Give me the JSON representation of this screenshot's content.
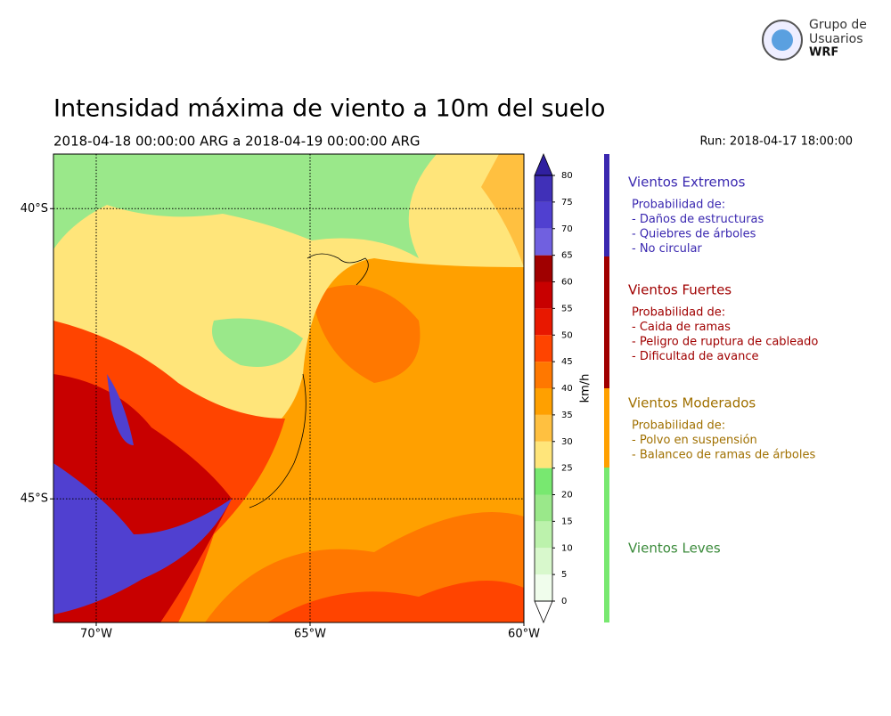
{
  "header": {
    "title": "Intensidad máxima de viento a 10m del suelo",
    "period": "2018-04-18 00:00:00 ARG  a  2018-04-19 00:00:00 ARG",
    "run": "Run: 2018-04-17 18:00:00"
  },
  "logo": {
    "lines": [
      "Grupo de",
      "Usuarios",
      "WRF"
    ]
  },
  "map": {
    "lonlim": [
      -71,
      -60
    ],
    "latlim": [
      -47.13,
      -39.06
    ],
    "lon_ticks": [
      {
        "value": -70,
        "label": "70°W"
      },
      {
        "value": -65,
        "label": "65°W"
      },
      {
        "value": -60,
        "label": "60°W"
      }
    ],
    "lat_ticks": [
      {
        "value": -40,
        "label": "40°S"
      },
      {
        "value": -45,
        "label": "45°S"
      }
    ]
  },
  "colorbar": {
    "unit": "km/h",
    "levels": [
      0,
      5,
      10,
      15,
      20,
      25,
      30,
      35,
      40,
      45,
      50,
      55,
      60,
      65,
      70,
      75,
      80
    ],
    "colors": [
      "#f0fdec",
      "#d8f8cc",
      "#bcf2ac",
      "#9ae88a",
      "#78e870",
      "#ffe57a",
      "#ffc040",
      "#ffa000",
      "#ff7800",
      "#ff4400",
      "#e81800",
      "#c80000",
      "#a00000",
      "#7060e0",
      "#5040d0",
      "#4030b8"
    ],
    "under_color": "#ffffff",
    "over_color": "#3020a0"
  },
  "legend": [
    {
      "title": "Vientos Extremos",
      "color": "#3a28b0",
      "lines": [
        "Probabilidad de:",
        "- Daños de estructuras",
        "- Quiebres de árboles",
        "- No circular"
      ]
    },
    {
      "title": "Vientos Fuertes",
      "color": "#a00000",
      "lines": [
        "Probabilidad de:",
        "- Caida de ramas",
        "- Peligro de ruptura de cableado",
        "- Dificultad de avance"
      ]
    },
    {
      "title": "Vientos Moderados",
      "color": "#a07000",
      "lines": [
        "Probabilidad de:",
        "- Polvo en suspensión",
        "- Balanceo de ramas de árboles"
      ]
    },
    {
      "title": "Vientos Leves",
      "color": "#3a8a3a",
      "lines": []
    }
  ]
}
